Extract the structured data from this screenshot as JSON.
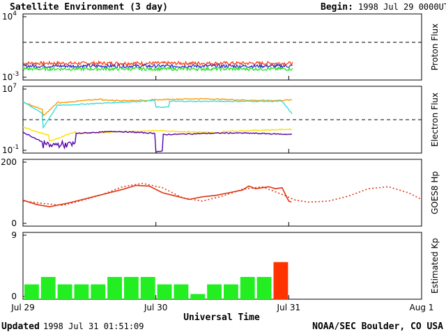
{
  "header": {
    "title": "Satellite Environment (3 day)",
    "begin_label": "Begin:",
    "begin_value": "1998 Jul 29 0000UT"
  },
  "footer": {
    "updated_label": "Updated",
    "updated_value": "1998 Jul 31 01:51:09",
    "source": "NOAA/SEC Boulder, CO USA"
  },
  "colors": {
    "red": "#ff3300",
    "blue": "#2222cc",
    "green": "#22dd22",
    "orange": "#ff9900",
    "cyan": "#33dddd",
    "yellow": "#ffdd00",
    "purple": "#5500aa",
    "hp": "#dd3311",
    "kp_green": "#22ee22",
    "kp_red": "#ff3300"
  },
  "chart_data": [
    {
      "type": "line",
      "ylabel": "Proton Flux",
      "y_scale": "log",
      "ylim_exponents": [
        -3,
        4
      ],
      "y_tick_labels": [
        {
          "base": "10",
          "exp": "4"
        },
        {
          "base": "10",
          "exp": "-3"
        }
      ],
      "threshold_dashed": 10,
      "series": [
        {
          "color_key": "red",
          "approx_value": 0.06
        },
        {
          "color_key": "blue",
          "approx_value": 0.03
        },
        {
          "color_key": "green",
          "approx_value": 0.015
        }
      ]
    },
    {
      "type": "line",
      "ylabel": "Electron Flux",
      "y_scale": "log",
      "ylim_exponents": [
        -1,
        7
      ],
      "y_tick_labels": [
        {
          "base": "10",
          "exp": "7"
        },
        {
          "base": "10",
          "exp": "-1"
        }
      ],
      "threshold_dashed": 1000,
      "series": [
        {
          "color_key": "orange"
        },
        {
          "color_key": "cyan"
        },
        {
          "color_key": "yellow"
        },
        {
          "color_key": "purple"
        }
      ]
    },
    {
      "type": "line",
      "ylabel": "GOES8 Hp",
      "ylim": [
        0,
        200
      ],
      "y_tick_labels": [
        "200",
        "0"
      ],
      "x_days": [
        0,
        0.1,
        0.2,
        0.35,
        0.5,
        0.7,
        0.8,
        0.9,
        1.0,
        1.15,
        1.3,
        1.5,
        1.65,
        1.8,
        1.95,
        2.0,
        2.1,
        2.25,
        2.4,
        2.55,
        2.7,
        2.85,
        3.0
      ],
      "series": [
        {
          "name": "",
          "style": "solid",
          "color_key": "hp",
          "x": [
            0,
            0.1,
            0.2,
            0.35,
            0.5,
            0.65,
            0.75,
            0.85,
            0.95,
            1.05,
            1.15,
            1.25,
            1.35,
            1.45,
            1.55,
            1.65,
            1.7,
            1.75,
            1.8,
            1.85,
            1.9,
            1.95,
            2.0,
            2.02
          ],
          "values": [
            78,
            65,
            58,
            70,
            85,
            100,
            110,
            122,
            120,
            100,
            90,
            80,
            88,
            92,
            100,
            108,
            120,
            112,
            115,
            118,
            112,
            115,
            75,
            72
          ]
        },
        {
          "name": "",
          "style": "dotted",
          "color_key": "hp",
          "x": [
            0,
            0.15,
            0.3,
            0.45,
            0.6,
            0.75,
            0.9,
            1.05,
            1.2,
            1.35,
            1.5,
            1.65,
            1.8,
            1.95,
            2.05,
            2.15,
            2.3,
            2.45,
            2.6,
            2.75,
            2.9,
            3.0
          ],
          "values": [
            75,
            68,
            62,
            78,
            95,
            118,
            128,
            115,
            85,
            75,
            90,
            110,
            118,
            95,
            78,
            72,
            75,
            90,
            112,
            118,
            100,
            80
          ]
        }
      ]
    },
    {
      "type": "bar",
      "ylabel": "Estimated Kp",
      "ylim": [
        0,
        9
      ],
      "y_tick_labels": [
        "9",
        "0"
      ],
      "values": [
        2,
        3,
        2,
        2,
        2,
        3,
        3,
        3,
        2,
        2,
        0.7,
        2,
        2,
        3,
        3,
        5
      ],
      "bar_colors": [
        "kp_green",
        "kp_green",
        "kp_green",
        "kp_green",
        "kp_green",
        "kp_green",
        "kp_green",
        "kp_green",
        "kp_green",
        "kp_green",
        "kp_green",
        "kp_green",
        "kp_green",
        "kp_green",
        "kp_green",
        "kp_red"
      ]
    }
  ],
  "x_axis": {
    "label": "Universal Time",
    "days": 3,
    "tick_labels": [
      "Jul 29",
      "Jul 30",
      "Jul 31",
      "Aug 1"
    ]
  }
}
